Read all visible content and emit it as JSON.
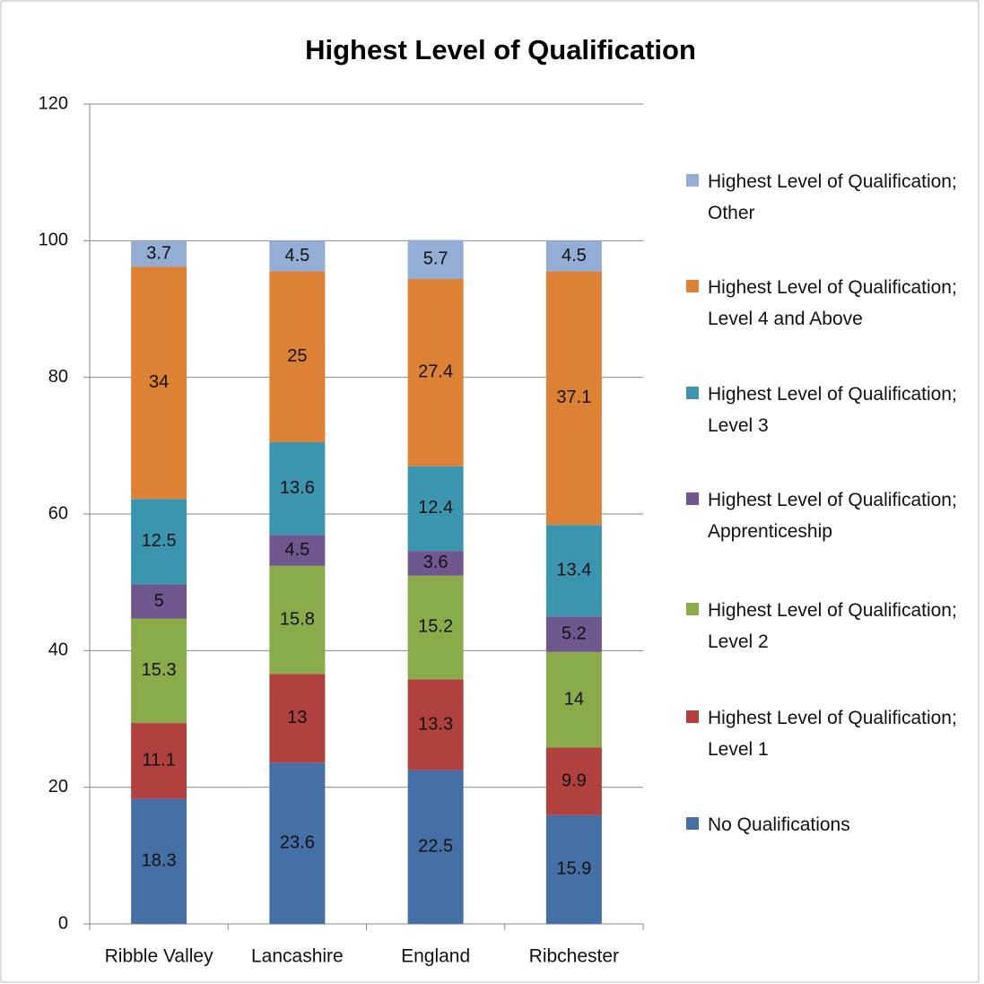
{
  "chart_data": {
    "type": "stacked_bar",
    "title": "Highest Level of Qualification",
    "categories": [
      "Ribble Valley",
      "Lancashire",
      "England",
      "Ribchester"
    ],
    "series": [
      {
        "name": "No Qualifications",
        "color": "#4470a6",
        "values": [
          18.3,
          23.6,
          22.5,
          15.9
        ]
      },
      {
        "name": "Highest Level of Qualification; Level 1",
        "color": "#b0413e",
        "values": [
          11.1,
          13,
          13.3,
          9.9
        ]
      },
      {
        "name": "Highest Level of Qualification; Level 2",
        "color": "#8aab4a",
        "values": [
          15.3,
          15.8,
          15.2,
          14
        ]
      },
      {
        "name": "Highest Level of Qualification; Apprenticeship",
        "color": "#71578f",
        "values": [
          5,
          4.5,
          3.6,
          5.2
        ]
      },
      {
        "name": "Highest Level of Qualification; Level 3",
        "color": "#3c95ae",
        "values": [
          12.5,
          13.6,
          12.4,
          13.4
        ]
      },
      {
        "name": "Highest Level of Qualification; Level 4 and Above",
        "color": "#dd8134",
        "values": [
          34,
          25,
          27.4,
          37.1
        ]
      },
      {
        "name": "Highest Level of Qualification; Other",
        "color": "#94add5",
        "values": [
          3.7,
          4.5,
          5.7,
          4.5
        ]
      }
    ],
    "ylim": [
      0,
      120
    ],
    "yticks": [
      0,
      20,
      40,
      60,
      80,
      100,
      120
    ],
    "grid": true
  }
}
